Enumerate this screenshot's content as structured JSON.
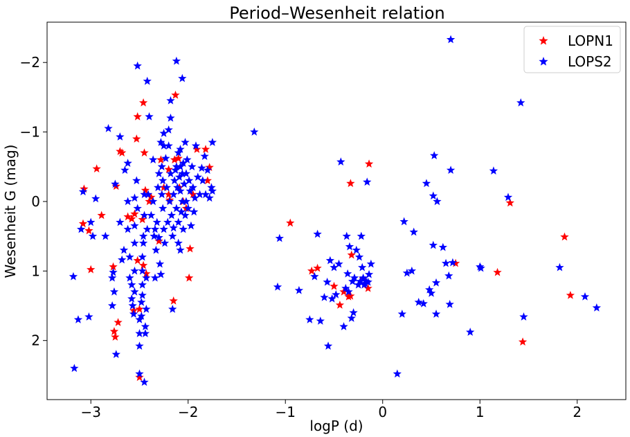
{
  "chart_data": {
    "type": "scatter",
    "title": "Period–Wesenheit relation",
    "xlabel": "logP (d)",
    "ylabel": "Wesenheit G (mag)",
    "xlim": [
      -3.45,
      2.5
    ],
    "ylim": [
      2.85,
      -2.58
    ],
    "y_inverted": true,
    "grid": false,
    "legend_position": "top-right",
    "marker": "star",
    "x_ticks": [
      -3,
      -2,
      -1,
      0,
      1,
      2
    ],
    "x_tick_labels": [
      "−3",
      "−2",
      "−1",
      "0",
      "1",
      "2"
    ],
    "y_ticks": [
      -2,
      -1,
      0,
      1,
      2
    ],
    "y_tick_labels": [
      "−2",
      "−1",
      "0",
      "1",
      "2"
    ],
    "series": [
      {
        "name": "LOPN1",
        "color": "#ff0000",
        "points": [
          [
            -3.08,
            0.32
          ],
          [
            -3.07,
            -0.18
          ],
          [
            -3.02,
            0.42
          ],
          [
            -3.0,
            0.98
          ],
          [
            -2.94,
            -0.47
          ],
          [
            -2.89,
            0.2
          ],
          [
            -2.77,
            0.94
          ],
          [
            -2.76,
            1.87
          ],
          [
            -2.75,
            1.95
          ],
          [
            -2.72,
            1.74
          ],
          [
            -2.74,
            -0.22
          ],
          [
            -2.7,
            -0.72
          ],
          [
            -2.68,
            -0.7
          ],
          [
            -2.62,
            0.22
          ],
          [
            -2.58,
            0.25
          ],
          [
            -2.53,
            -0.9
          ],
          [
            -2.52,
            -1.22
          ],
          [
            -2.46,
            -1.42
          ],
          [
            -2.45,
            -0.7
          ],
          [
            -2.44,
            -0.16
          ],
          [
            -2.47,
            0.26
          ],
          [
            -2.52,
            0.85
          ],
          [
            -2.46,
            0.92
          ],
          [
            -2.43,
            1.04
          ],
          [
            -2.5,
            1.55
          ],
          [
            -2.5,
            2.53
          ],
          [
            -2.56,
            1.57
          ],
          [
            -2.55,
            0.18
          ],
          [
            -2.38,
            -0.06
          ],
          [
            -2.28,
            -0.6
          ],
          [
            -2.25,
            -0.2
          ],
          [
            -2.2,
            -0.1
          ],
          [
            -2.2,
            -0.46
          ],
          [
            -2.19,
            -0.02
          ],
          [
            -2.14,
            -0.6
          ],
          [
            -2.13,
            -1.53
          ],
          [
            -2.1,
            -0.62
          ],
          [
            -2.09,
            -0.2
          ],
          [
            -2.05,
            0.0
          ],
          [
            -2.02,
            0.1
          ],
          [
            -1.98,
            0.68
          ],
          [
            -1.99,
            1.1
          ],
          [
            -1.95,
            -0.1
          ],
          [
            -1.91,
            -0.75
          ],
          [
            -1.82,
            -0.75
          ],
          [
            -1.8,
            -0.3
          ],
          [
            -1.78,
            -0.49
          ],
          [
            -2.15,
            1.43
          ],
          [
            -2.3,
            0.57
          ],
          [
            -2.4,
            0.0
          ],
          [
            -0.95,
            0.31
          ],
          [
            -0.73,
            1.0
          ],
          [
            -0.67,
            0.96
          ],
          [
            -0.5,
            1.22
          ],
          [
            -0.44,
            1.49
          ],
          [
            -0.4,
            1.3
          ],
          [
            -0.35,
            1.37
          ],
          [
            -0.33,
            1.36
          ],
          [
            -0.33,
            -0.26
          ],
          [
            -0.2,
            1.11
          ],
          [
            -0.15,
            1.25
          ],
          [
            -0.14,
            -0.54
          ],
          [
            -0.32,
            0.77
          ],
          [
            0.75,
            0.89
          ],
          [
            1.18,
            1.02
          ],
          [
            1.31,
            0.02
          ],
          [
            1.44,
            2.02
          ],
          [
            1.87,
            0.51
          ],
          [
            1.93,
            1.35
          ]
        ]
      },
      {
        "name": "LOPS2",
        "color": "#0000ff",
        "points": [
          [
            -3.18,
            1.08
          ],
          [
            -3.17,
            2.4
          ],
          [
            -3.13,
            1.7
          ],
          [
            -3.1,
            0.4
          ],
          [
            -3.08,
            -0.14
          ],
          [
            -3.02,
            1.66
          ],
          [
            -3.0,
            0.3
          ],
          [
            -2.98,
            0.5
          ],
          [
            -2.95,
            -0.04
          ],
          [
            -2.85,
            0.5
          ],
          [
            -2.82,
            -1.05
          ],
          [
            -2.78,
            1.5
          ],
          [
            -2.78,
            1.1
          ],
          [
            -2.77,
            1.02
          ],
          [
            -2.76,
            1.3
          ],
          [
            -2.74,
            2.2
          ],
          [
            -2.75,
            -0.25
          ],
          [
            -2.7,
            -0.93
          ],
          [
            -2.7,
            0.3
          ],
          [
            -2.68,
            0.84
          ],
          [
            -2.66,
            0.7
          ],
          [
            -2.65,
            -0.45
          ],
          [
            -2.62,
            0.0
          ],
          [
            -2.62,
            0.4
          ],
          [
            -2.62,
            -0.55
          ],
          [
            -2.6,
            0.8
          ],
          [
            -2.6,
            1.1
          ],
          [
            -2.58,
            1.2
          ],
          [
            -2.58,
            1.4
          ],
          [
            -2.57,
            1.5
          ],
          [
            -2.56,
            1.62
          ],
          [
            -2.55,
            1.3
          ],
          [
            -2.55,
            1.0
          ],
          [
            -2.55,
            0.6
          ],
          [
            -2.55,
            0.35
          ],
          [
            -2.55,
            -0.05
          ],
          [
            -2.52,
            0.1
          ],
          [
            -2.53,
            -0.3
          ],
          [
            -2.5,
            1.7
          ],
          [
            -2.5,
            1.9
          ],
          [
            -2.5,
            2.08
          ],
          [
            -2.5,
            2.48
          ],
          [
            -2.48,
            1.65
          ],
          [
            -2.48,
            1.45
          ],
          [
            -2.47,
            1.35
          ],
          [
            -2.47,
            1.2
          ],
          [
            -2.47,
            1.0
          ],
          [
            -2.47,
            0.8
          ],
          [
            -2.46,
            0.6
          ],
          [
            -2.46,
            0.5
          ],
          [
            -2.45,
            0.2
          ],
          [
            -2.45,
            -0.1
          ],
          [
            -2.45,
            2.6
          ],
          [
            -2.44,
            1.9
          ],
          [
            -2.44,
            1.8
          ],
          [
            -2.43,
            1.55
          ],
          [
            -2.43,
            1.1
          ],
          [
            -2.42,
            0.4
          ],
          [
            -2.41,
            -0.1
          ],
          [
            -2.4,
            -1.22
          ],
          [
            -2.52,
            -1.95
          ],
          [
            -2.42,
            -1.73
          ],
          [
            -2.38,
            0.2
          ],
          [
            -2.36,
            -0.6
          ],
          [
            -2.36,
            0.0
          ],
          [
            -2.35,
            0.5
          ],
          [
            -2.34,
            1.1
          ],
          [
            -2.33,
            0.7
          ],
          [
            -2.32,
            0.3
          ],
          [
            -2.31,
            -0.2
          ],
          [
            -2.3,
            -0.4
          ],
          [
            -2.3,
            0.52
          ],
          [
            -2.29,
            0.9
          ],
          [
            -2.28,
            -0.85
          ],
          [
            -2.27,
            -0.5
          ],
          [
            -2.27,
            -0.1
          ],
          [
            -2.26,
            -0.3
          ],
          [
            -2.26,
            0.1
          ],
          [
            -2.25,
            0.4
          ],
          [
            -2.25,
            -0.98
          ],
          [
            -2.24,
            0.6
          ],
          [
            -2.23,
            -0.62
          ],
          [
            -2.22,
            -0.2
          ],
          [
            -2.21,
            0.3
          ],
          [
            -2.2,
            -0.8
          ],
          [
            -2.19,
            0.0
          ],
          [
            -2.18,
            -0.4
          ],
          [
            -2.18,
            -1.2
          ],
          [
            -2.17,
            0.2
          ],
          [
            -2.16,
            0.5
          ],
          [
            -2.16,
            1.55
          ],
          [
            -2.15,
            -0.1
          ],
          [
            -2.14,
            -0.3
          ],
          [
            -2.13,
            -0.45
          ],
          [
            -2.12,
            0.1
          ],
          [
            -2.12,
            -0.5
          ],
          [
            -2.11,
            -0.2
          ],
          [
            -2.1,
            0.3
          ],
          [
            -2.1,
            0.6
          ],
          [
            -2.1,
            -0.7
          ],
          [
            -2.09,
            -0.35
          ],
          [
            -2.08,
            -0.15
          ],
          [
            -2.07,
            0.15
          ],
          [
            -2.06,
            -0.4
          ],
          [
            -2.06,
            0.0
          ],
          [
            -2.05,
            0.4
          ],
          [
            -2.05,
            -0.55
          ],
          [
            -2.04,
            -0.25
          ],
          [
            -2.03,
            -0.85
          ],
          [
            -2.03,
            0.2
          ],
          [
            -2.02,
            -0.4
          ],
          [
            -2.02,
            0.0
          ],
          [
            -2.01,
            -0.6
          ],
          [
            -2.0,
            0.1
          ],
          [
            -1.99,
            -0.3
          ],
          [
            -1.98,
            -0.15
          ],
          [
            -1.97,
            0.35
          ],
          [
            -1.96,
            -0.5
          ],
          [
            -1.95,
            -0.2
          ],
          [
            -1.94,
            0.15
          ],
          [
            -1.93,
            -0.05
          ],
          [
            -1.92,
            -0.8
          ],
          [
            -1.9,
            -0.35
          ],
          [
            -1.88,
            -0.1
          ],
          [
            -1.86,
            -0.48
          ],
          [
            -1.85,
            -0.3
          ],
          [
            -1.83,
            -0.65
          ],
          [
            -1.82,
            -0.1
          ],
          [
            -1.8,
            -0.45
          ],
          [
            -1.78,
            -0.05
          ],
          [
            -1.76,
            -0.2
          ],
          [
            -1.75,
            -0.85
          ],
          [
            -1.75,
            -0.15
          ],
          [
            -2.12,
            -2.02
          ],
          [
            -2.06,
            -1.77
          ],
          [
            -2.18,
            -1.45
          ],
          [
            -2.2,
            -1.03
          ],
          [
            -2.08,
            -0.5
          ],
          [
            -2.08,
            -0.75
          ],
          [
            -2.08,
            0.7
          ],
          [
            -2.15,
            0.38
          ],
          [
            -2.28,
            1.05
          ],
          [
            -2.34,
            0.4
          ],
          [
            -2.25,
            -0.8
          ],
          [
            -1.32,
            -1.0
          ],
          [
            -1.08,
            1.23
          ],
          [
            -1.06,
            0.53
          ],
          [
            -0.86,
            1.28
          ],
          [
            -0.75,
            1.7
          ],
          [
            -0.7,
            1.08
          ],
          [
            -0.67,
            0.47
          ],
          [
            -0.64,
            1.72
          ],
          [
            -0.6,
            1.38
          ],
          [
            -0.57,
            1.16
          ],
          [
            -0.56,
            2.08
          ],
          [
            -0.54,
            0.85
          ],
          [
            -0.52,
            1.4
          ],
          [
            -0.5,
            0.95
          ],
          [
            -0.48,
            1.34
          ],
          [
            -0.45,
            0.9
          ],
          [
            -0.43,
            -0.57
          ],
          [
            -0.4,
            1.8
          ],
          [
            -0.38,
            1.25
          ],
          [
            -0.37,
            0.5
          ],
          [
            -0.36,
            1.04
          ],
          [
            -0.35,
            1.3
          ],
          [
            -0.34,
            0.65
          ],
          [
            -0.32,
            1.68
          ],
          [
            -0.31,
            1.15
          ],
          [
            -0.3,
            1.6
          ],
          [
            -0.29,
            1.1
          ],
          [
            -0.27,
            0.7
          ],
          [
            -0.25,
            1.2
          ],
          [
            -0.24,
            0.8
          ],
          [
            -0.23,
            1.15
          ],
          [
            -0.22,
            0.5
          ],
          [
            -0.21,
            0.95
          ],
          [
            -0.2,
            1.1
          ],
          [
            -0.19,
            1.2
          ],
          [
            -0.18,
            1.18
          ],
          [
            -0.17,
            1.15
          ],
          [
            -0.16,
            -0.28
          ],
          [
            -0.15,
            1.16
          ],
          [
            -0.14,
            1.05
          ],
          [
            -0.12,
            0.9
          ],
          [
            0.15,
            2.48
          ],
          [
            0.2,
            1.62
          ],
          [
            0.22,
            0.29
          ],
          [
            0.25,
            1.03
          ],
          [
            0.3,
            1.0
          ],
          [
            0.32,
            0.44
          ],
          [
            0.37,
            1.45
          ],
          [
            0.42,
            1.47
          ],
          [
            0.45,
            -0.26
          ],
          [
            0.48,
            1.27
          ],
          [
            0.5,
            1.32
          ],
          [
            0.52,
            0.63
          ],
          [
            0.53,
            -0.66
          ],
          [
            0.55,
            1.62
          ],
          [
            0.55,
            1.17
          ],
          [
            0.52,
            -0.08
          ],
          [
            0.56,
            0.0
          ],
          [
            0.62,
            0.66
          ],
          [
            0.65,
            0.89
          ],
          [
            0.68,
            1.07
          ],
          [
            0.69,
            1.48
          ],
          [
            0.7,
            -2.33
          ],
          [
            0.7,
            -0.45
          ],
          [
            0.72,
            0.88
          ],
          [
            0.9,
            1.88
          ],
          [
            1.0,
            0.94
          ],
          [
            1.01,
            0.96
          ],
          [
            1.14,
            -0.44
          ],
          [
            1.29,
            -0.06
          ],
          [
            1.42,
            -1.42
          ],
          [
            1.45,
            1.66
          ],
          [
            1.82,
            0.95
          ],
          [
            2.08,
            1.37
          ],
          [
            2.2,
            1.53
          ]
        ]
      }
    ]
  }
}
